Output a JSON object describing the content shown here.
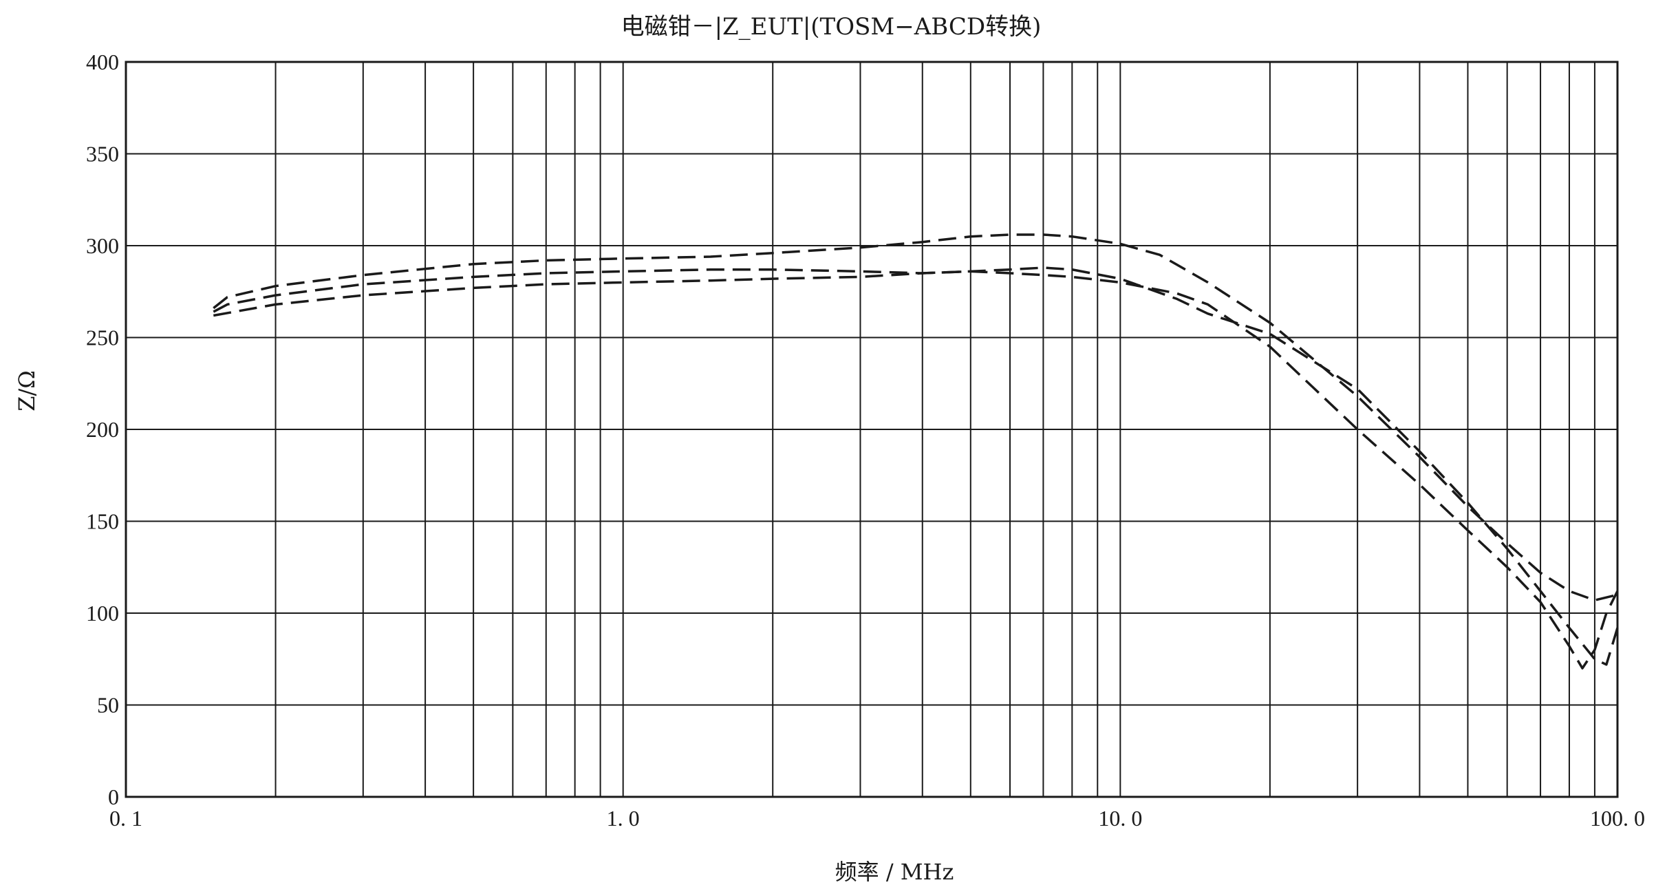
{
  "chart_data": {
    "type": "line",
    "title": "电磁钳－|Z_EUT|(TOSM−ABCD转换)",
    "xlabel": "频率 / MHz",
    "ylabel": "Z/Ω",
    "x_scale": "log",
    "xlim": [
      0.1,
      100.0
    ],
    "ylim": [
      0,
      400
    ],
    "x_ticks": [
      {
        "value": 0.1,
        "label": "0. 1"
      },
      {
        "value": 1.0,
        "label": "1. 0"
      },
      {
        "value": 10.0,
        "label": "10. 0"
      },
      {
        "value": 100.0,
        "label": "100. 0"
      }
    ],
    "y_ticks": [
      {
        "value": 0,
        "label": "0"
      },
      {
        "value": 50,
        "label": "50"
      },
      {
        "value": 100,
        "label": "100"
      },
      {
        "value": 150,
        "label": "150"
      },
      {
        "value": 200,
        "label": "200"
      },
      {
        "value": 250,
        "label": "250"
      },
      {
        "value": 300,
        "label": "300"
      },
      {
        "value": 350,
        "label": "350"
      },
      {
        "value": 400,
        "label": "400"
      }
    ],
    "grid": true,
    "line_color": "#1a1a1a",
    "line_style": "dashed",
    "series": [
      {
        "points": [
          [
            0.15,
            266
          ],
          [
            0.16,
            272
          ],
          [
            0.2,
            278
          ],
          [
            0.3,
            284
          ],
          [
            0.5,
            290
          ],
          [
            0.7,
            292
          ],
          [
            1.0,
            293
          ],
          [
            1.5,
            294
          ],
          [
            2.0,
            296
          ],
          [
            3.0,
            299
          ],
          [
            4.0,
            302
          ],
          [
            5.0,
            305
          ],
          [
            6.0,
            306
          ],
          [
            7.0,
            306
          ],
          [
            8.0,
            305
          ],
          [
            10.0,
            301
          ],
          [
            12.0,
            295
          ],
          [
            15.0,
            280
          ],
          [
            20.0,
            258
          ],
          [
            30.0,
            218
          ],
          [
            40.0,
            185
          ],
          [
            50.0,
            158
          ],
          [
            60.0,
            138
          ],
          [
            70.0,
            122
          ],
          [
            80.0,
            112
          ],
          [
            90.0,
            107
          ],
          [
            100.0,
            110
          ]
        ]
      },
      {
        "points": [
          [
            0.15,
            264
          ],
          [
            0.16,
            268
          ],
          [
            0.2,
            273
          ],
          [
            0.3,
            279
          ],
          [
            0.5,
            283
          ],
          [
            0.7,
            285
          ],
          [
            1.0,
            286
          ],
          [
            1.5,
            287
          ],
          [
            2.0,
            287
          ],
          [
            3.0,
            286
          ],
          [
            4.0,
            285
          ],
          [
            5.0,
            286
          ],
          [
            6.0,
            287
          ],
          [
            7.0,
            288
          ],
          [
            8.0,
            287
          ],
          [
            10.0,
            282
          ],
          [
            13.0,
            271
          ],
          [
            15.0,
            263
          ],
          [
            20.0,
            252
          ],
          [
            30.0,
            222
          ],
          [
            40.0,
            188
          ],
          [
            50.0,
            160
          ],
          [
            60.0,
            135
          ],
          [
            70.0,
            112
          ],
          [
            80.0,
            92
          ],
          [
            90.0,
            75
          ],
          [
            95.0,
            72
          ],
          [
            100.0,
            92
          ]
        ]
      },
      {
        "points": [
          [
            0.15,
            262
          ],
          [
            0.2,
            268
          ],
          [
            0.3,
            273
          ],
          [
            0.5,
            277
          ],
          [
            0.7,
            279
          ],
          [
            1.0,
            280
          ],
          [
            1.5,
            281
          ],
          [
            2.0,
            282
          ],
          [
            3.0,
            283
          ],
          [
            4.0,
            285
          ],
          [
            5.0,
            286
          ],
          [
            6.0,
            285
          ],
          [
            7.0,
            284
          ],
          [
            8.0,
            283
          ],
          [
            10.0,
            280
          ],
          [
            13.0,
            274
          ],
          [
            15.0,
            268
          ],
          [
            20.0,
            245
          ],
          [
            30.0,
            200
          ],
          [
            40.0,
            170
          ],
          [
            50.0,
            145
          ],
          [
            60.0,
            125
          ],
          [
            70.0,
            106
          ],
          [
            80.0,
            82
          ],
          [
            85.0,
            70
          ],
          [
            90.0,
            80
          ],
          [
            95.0,
            100
          ],
          [
            100.0,
            112
          ]
        ]
      }
    ]
  }
}
